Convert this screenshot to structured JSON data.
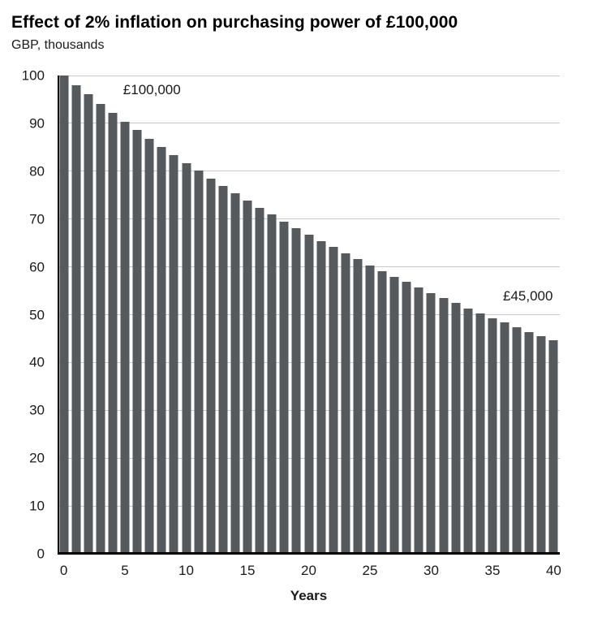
{
  "chart_data": {
    "type": "bar",
    "title": "Effect of 2% inflation on purchasing power of £100,000",
    "subtitle": "GBP, thousands",
    "xlabel": "Years",
    "ylabel": "",
    "x": [
      0,
      1,
      2,
      3,
      4,
      5,
      6,
      7,
      8,
      9,
      10,
      11,
      12,
      13,
      14,
      15,
      16,
      17,
      18,
      19,
      20,
      21,
      22,
      23,
      24,
      25,
      26,
      27,
      28,
      29,
      30,
      31,
      32,
      33,
      34,
      35,
      36,
      37,
      38,
      39,
      40
    ],
    "values": [
      100,
      98,
      96.04,
      94.12,
      92.24,
      90.39,
      88.58,
      86.81,
      85.08,
      83.37,
      81.71,
      80.07,
      78.47,
      76.9,
      75.36,
      73.86,
      72.38,
      70.93,
      69.51,
      68.12,
      66.76,
      65.43,
      64.12,
      62.83,
      61.58,
      60.35,
      59.14,
      57.96,
      56.8,
      55.66,
      54.55,
      53.46,
      52.39,
      51.34,
      50.31,
      49.3,
      48.32,
      47.35,
      46.4,
      45.47,
      44.57
    ],
    "ylim": [
      0,
      100
    ],
    "yticks": [
      0,
      10,
      20,
      30,
      40,
      50,
      60,
      70,
      80,
      90,
      100
    ],
    "xticks": [
      0,
      5,
      10,
      15,
      20,
      25,
      30,
      35,
      40
    ],
    "grid": "horizontal",
    "legend": "none",
    "bar_color": "#565A5D",
    "gridline_color": "#c9c9c9",
    "axis_color": "#000000",
    "annotations": [
      {
        "text": "£100,000",
        "year": 7.2,
        "value": 97.0
      },
      {
        "text": "£45,000",
        "year": 37.9,
        "value": 53.8
      }
    ]
  }
}
